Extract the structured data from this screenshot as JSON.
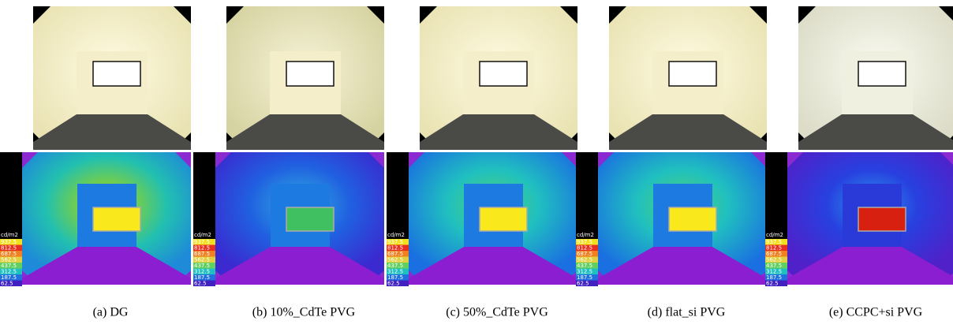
{
  "figure": {
    "panels": [
      {
        "caption": "(a) DG"
      },
      {
        "caption": "(b) 10%_CdTe PVG"
      },
      {
        "caption": "(c) 50%_CdTe PVG"
      },
      {
        "caption": "(d) flat_si PVG"
      },
      {
        "caption": "(e) CCPC+si PVG"
      }
    ],
    "legend": {
      "unit": "cd/m2",
      "values": [
        "937.5",
        "812.5",
        "687.5",
        "562.5",
        "437.5",
        "312.5",
        "187.5",
        "62.5"
      ]
    }
  }
}
